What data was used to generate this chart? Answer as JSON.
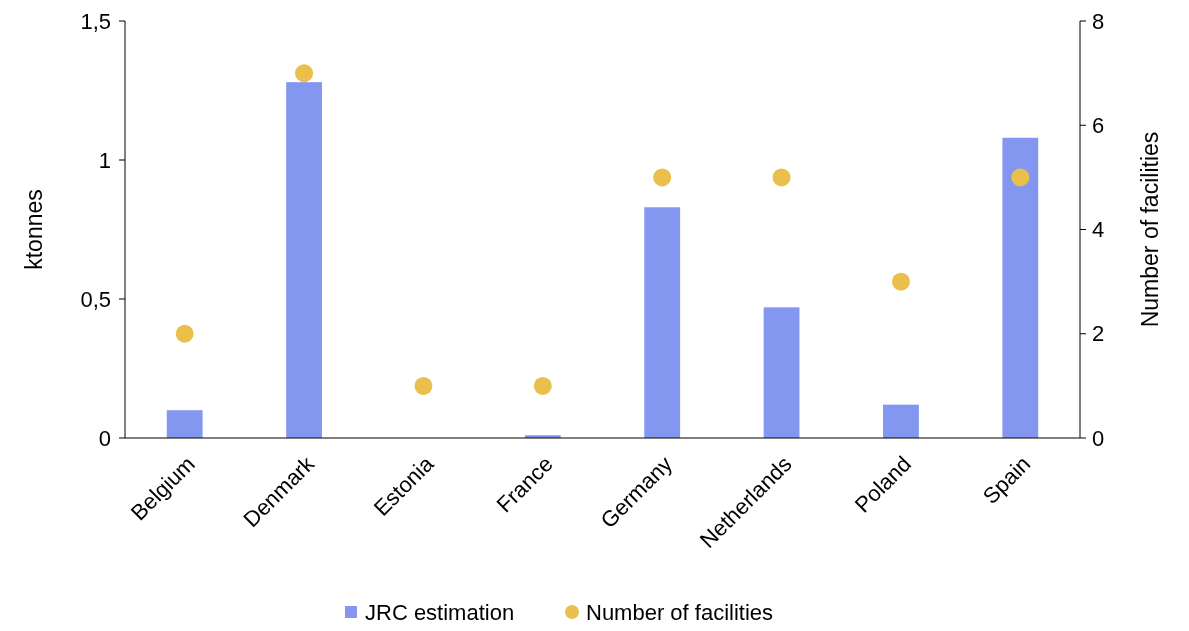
{
  "chart_data": {
    "type": "bar",
    "ylabel": "ktonnes",
    "y2label": "Number of facilities",
    "categories": [
      "Belgium",
      "Denmark",
      "Estonia",
      "France",
      "Germany",
      "Netherlands",
      "Poland",
      "Spain"
    ],
    "series": [
      {
        "name": "JRC estimation",
        "color": "#8497f0",
        "values": [
          0.1,
          1.28,
          0,
          0.01,
          0.83,
          0.47,
          0.12,
          1.08
        ]
      },
      {
        "name": "Number of facilities",
        "type": "scatter",
        "axis": "y2",
        "color": "#eabf4c",
        "values": [
          2,
          7,
          1,
          1,
          5,
          5,
          3,
          5
        ]
      }
    ],
    "ylim": [
      0,
      1.5
    ],
    "yticks": [
      0,
      {
        "value": 0.5,
        "label": "0,5"
      },
      1,
      {
        "value": 1.5,
        "label": "1,5"
      }
    ],
    "y2lim": [
      0,
      8
    ],
    "y2ticks": [
      0,
      2,
      4,
      6,
      8
    ],
    "grid": false,
    "legend": "bottom",
    "marker": "circle"
  }
}
